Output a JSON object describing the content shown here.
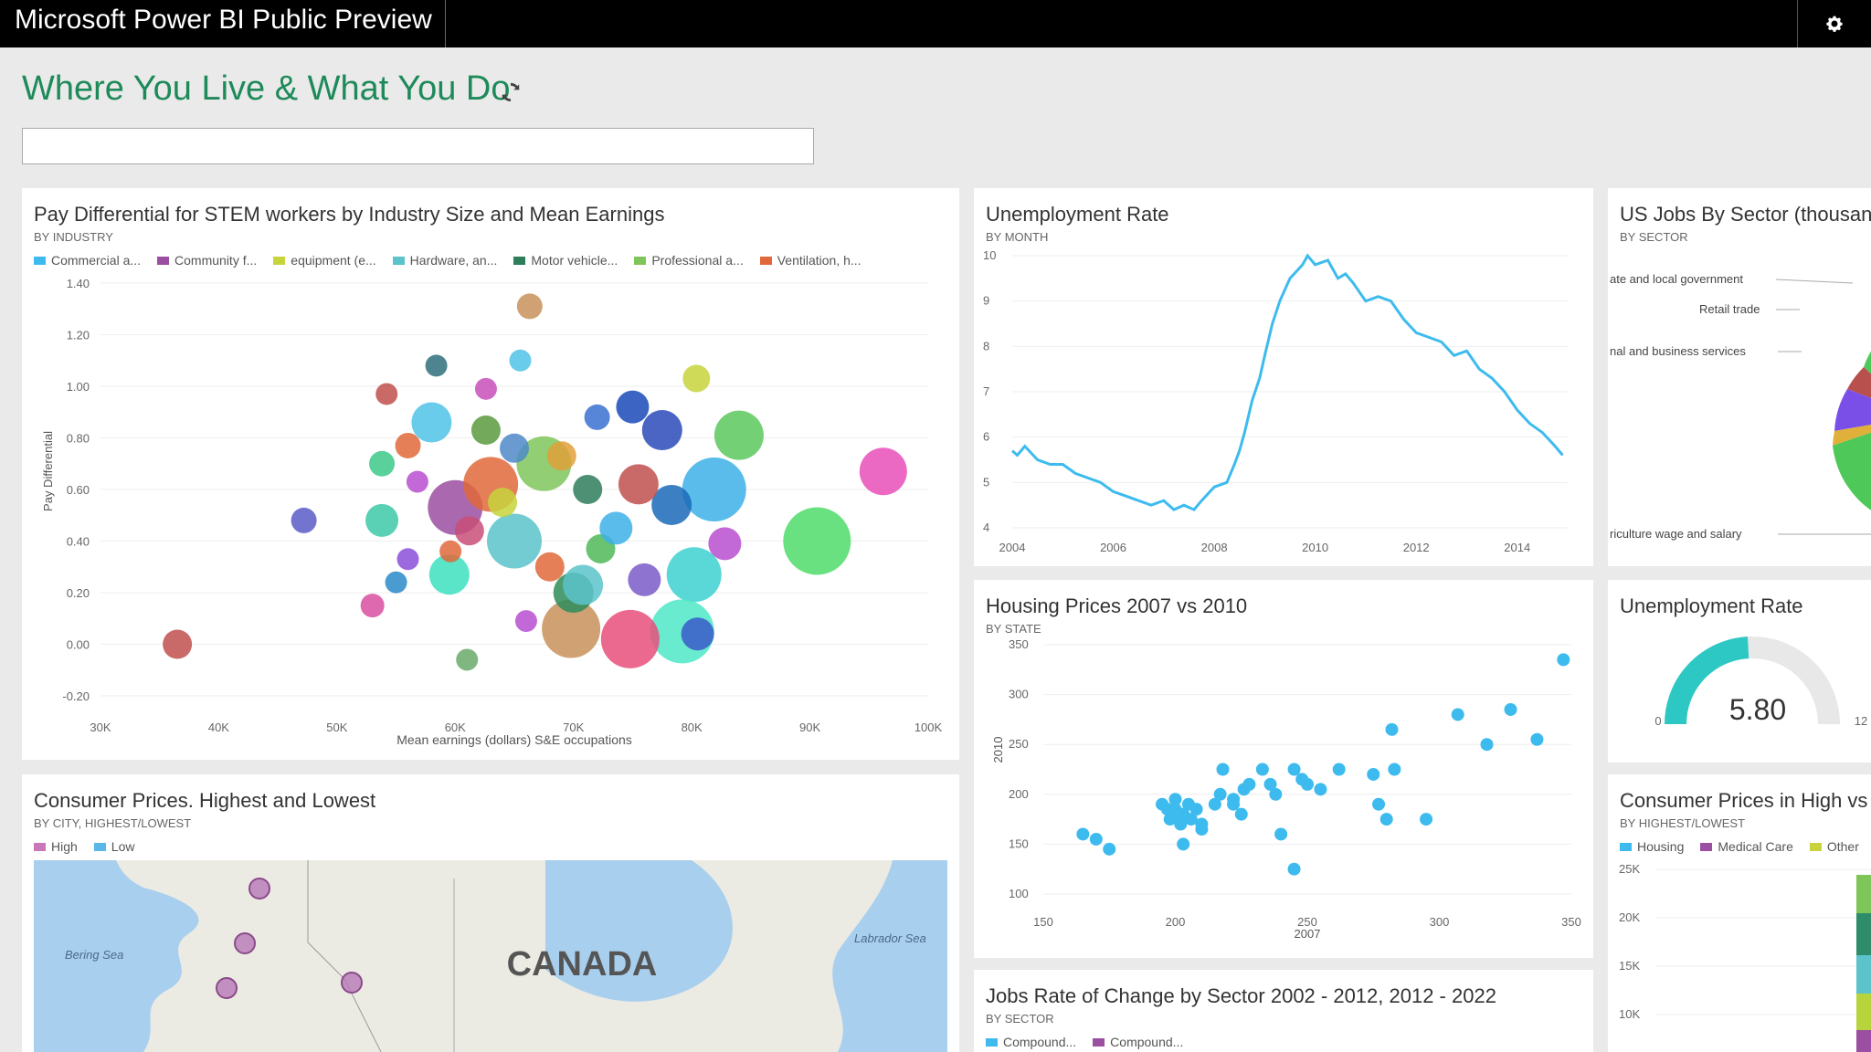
{
  "app": {
    "title": "Microsoft Power BI Public Preview"
  },
  "dashboard": {
    "title": "Where You Live & What You Do",
    "qa_placeholder": ""
  },
  "tiles": {
    "stem": {
      "title": "Pay Differential for STEM workers by Industry Size and Mean Earnings",
      "subtitle": "BY INDUSTRY",
      "legend": [
        {
          "label": "Commercial a...",
          "color": "#3dbbee"
        },
        {
          "label": "Community f...",
          "color": "#9b4fa0"
        },
        {
          "label": "equipment (e...",
          "color": "#c7d43c"
        },
        {
          "label": "Hardware, an...",
          "color": "#5bc3c9"
        },
        {
          "label": "Motor vehicle...",
          "color": "#2e7d5b"
        },
        {
          "label": "Professional a...",
          "color": "#7fc65a"
        },
        {
          "label": "Ventilation, h...",
          "color": "#e0683a"
        }
      ]
    },
    "unemp": {
      "title": "Unemployment Rate",
      "subtitle": "BY MONTH"
    },
    "jobs_sector": {
      "title": "US Jobs By Sector (thousands)",
      "subtitle": "BY SECTOR",
      "labels": [
        "ate and local government",
        "Retail trade",
        "nal and business services",
        "riculture wage and salary"
      ]
    },
    "housing": {
      "title": "Housing Prices 2007 vs 2010",
      "subtitle": "BY STATE"
    },
    "gauge": {
      "title": "Unemployment Rate",
      "value": "5.80",
      "min": "0",
      "max": "12"
    },
    "consumer_map": {
      "title": "Consumer Prices. Highest and Lowest",
      "subtitle": "BY CITY, HIGHEST/LOWEST",
      "legend": [
        {
          "label": "High",
          "color": "#c878b8"
        },
        {
          "label": "Low",
          "color": "#5ab8e8"
        }
      ],
      "map_labels": {
        "country": "CANADA",
        "sea1": "Bering Sea",
        "sea2": "Labrador Sea"
      }
    },
    "consumer_hl": {
      "title": "Consumer Prices in High vs Low",
      "subtitle": "BY HIGHEST/LOWEST",
      "legend": [
        {
          "label": "Housing",
          "color": "#3dbbee"
        },
        {
          "label": "Medical Care",
          "color": "#9b4fa0"
        },
        {
          "label": "Other",
          "color": "#c7d43c"
        }
      ],
      "ticks": [
        "25K",
        "20K",
        "15K",
        "10K"
      ]
    },
    "jobs_rate": {
      "title": "Jobs Rate of Change by Sector 2002 - 2012, 2012 - 2022",
      "subtitle": "BY SECTOR",
      "legend": [
        {
          "label": "Compound...",
          "color": "#3dbbee"
        },
        {
          "label": "Compound...",
          "color": "#9b4fa0"
        }
      ]
    }
  },
  "chart_data": [
    {
      "type": "scatter",
      "title": "Pay Differential for STEM workers by Industry Size and Mean Earnings",
      "xlabel": "Mean earnings (dollars) S&E occupations",
      "ylabel": "Pay Differential",
      "xlim": [
        30000,
        100000
      ],
      "ylim": [
        -0.2,
        1.4
      ],
      "xticks": [
        "30K",
        "40K",
        "50K",
        "60K",
        "70K",
        "80K",
        "90K",
        "100K"
      ],
      "yticks": [
        "1.40",
        "1.20",
        "1.00",
        "0.80",
        "0.60",
        "0.40",
        "0.20",
        "0.00",
        "-0.20"
      ],
      "points": [
        {
          "x": 36500,
          "y": 0.0,
          "size": 16,
          "color": "#c0504d"
        },
        {
          "x": 47200,
          "y": 0.48,
          "size": 14,
          "color": "#5a5ac8"
        },
        {
          "x": 66300,
          "y": 1.31,
          "size": 14,
          "color": "#c8925a"
        },
        {
          "x": 65500,
          "y": 1.1,
          "size": 12,
          "color": "#4fc3e8"
        },
        {
          "x": 80400,
          "y": 1.03,
          "size": 15,
          "color": "#c7d43c"
        },
        {
          "x": 84000,
          "y": 0.81,
          "size": 27,
          "color": "#5cc85c"
        },
        {
          "x": 96200,
          "y": 0.67,
          "size": 26,
          "color": "#e84fb8"
        },
        {
          "x": 90600,
          "y": 0.4,
          "size": 37,
          "color": "#4fdc6a"
        },
        {
          "x": 80200,
          "y": 0.27,
          "size": 30,
          "color": "#3dd0d0"
        },
        {
          "x": 79200,
          "y": 0.05,
          "size": 35,
          "color": "#4fe8c8"
        },
        {
          "x": 81900,
          "y": 0.6,
          "size": 35,
          "color": "#3db0e8"
        },
        {
          "x": 61000,
          "y": -0.06,
          "size": 12,
          "color": "#6aaa6a"
        },
        {
          "x": 74800,
          "y": 0.02,
          "size": 32,
          "color": "#e84f7a"
        },
        {
          "x": 69800,
          "y": 0.06,
          "size": 32,
          "color": "#c8925a"
        },
        {
          "x": 70000,
          "y": 0.2,
          "size": 22,
          "color": "#2e8c5b"
        },
        {
          "x": 70800,
          "y": 0.23,
          "size": 22,
          "color": "#5bc3c9"
        },
        {
          "x": 80500,
          "y": 0.04,
          "size": 18,
          "color": "#3a5ac8"
        },
        {
          "x": 82800,
          "y": 0.39,
          "size": 18,
          "color": "#b84fd0"
        },
        {
          "x": 78300,
          "y": 0.54,
          "size": 22,
          "color": "#1a6ab8"
        },
        {
          "x": 77500,
          "y": 0.83,
          "size": 22,
          "color": "#2a4ab8"
        },
        {
          "x": 72000,
          "y": 0.88,
          "size": 14,
          "color": "#3a70d0"
        },
        {
          "x": 56000,
          "y": 0.77,
          "size": 14,
          "color": "#e0683a"
        },
        {
          "x": 53800,
          "y": 0.7,
          "size": 14,
          "color": "#3dc88a"
        },
        {
          "x": 53800,
          "y": 0.48,
          "size": 18,
          "color": "#3dc8a8"
        },
        {
          "x": 59500,
          "y": 0.27,
          "size": 22,
          "color": "#3de0c0"
        },
        {
          "x": 60000,
          "y": 0.53,
          "size": 30,
          "color": "#9b4fa0"
        },
        {
          "x": 63000,
          "y": 0.62,
          "size": 30,
          "color": "#e0683a"
        },
        {
          "x": 65000,
          "y": 0.4,
          "size": 30,
          "color": "#5bc3c9"
        },
        {
          "x": 67500,
          "y": 0.7,
          "size": 30,
          "color": "#7fc65a"
        },
        {
          "x": 58000,
          "y": 0.86,
          "size": 22,
          "color": "#4fc3e8"
        },
        {
          "x": 54200,
          "y": 0.97,
          "size": 12,
          "color": "#c0504d"
        },
        {
          "x": 58400,
          "y": 1.08,
          "size": 12,
          "color": "#2e6e7d"
        },
        {
          "x": 62600,
          "y": 0.99,
          "size": 12,
          "color": "#c84fb8"
        },
        {
          "x": 75000,
          "y": 0.92,
          "size": 18,
          "color": "#1a4ab8"
        },
        {
          "x": 75500,
          "y": 0.62,
          "size": 22,
          "color": "#c0504d"
        },
        {
          "x": 56800,
          "y": 0.63,
          "size": 12,
          "color": "#b84fd0"
        },
        {
          "x": 56000,
          "y": 0.33,
          "size": 12,
          "color": "#8b4fd8"
        },
        {
          "x": 53000,
          "y": 0.15,
          "size": 13,
          "color": "#d84fa0"
        },
        {
          "x": 66000,
          "y": 0.09,
          "size": 12,
          "color": "#b84fd0"
        },
        {
          "x": 72300,
          "y": 0.37,
          "size": 16,
          "color": "#4fb858"
        },
        {
          "x": 61200,
          "y": 0.44,
          "size": 16,
          "color": "#c84f78"
        },
        {
          "x": 62600,
          "y": 0.83,
          "size": 16,
          "color": "#5a9a3d"
        },
        {
          "x": 65000,
          "y": 0.76,
          "size": 16,
          "color": "#4f8ac8"
        },
        {
          "x": 69000,
          "y": 0.73,
          "size": 16,
          "color": "#e0a03a"
        },
        {
          "x": 68000,
          "y": 0.3,
          "size": 16,
          "color": "#e0683a"
        },
        {
          "x": 73600,
          "y": 0.45,
          "size": 18,
          "color": "#3db0e8"
        },
        {
          "x": 76000,
          "y": 0.25,
          "size": 18,
          "color": "#7a5ac8"
        },
        {
          "x": 64000,
          "y": 0.55,
          "size": 16,
          "color": "#c7d43c"
        },
        {
          "x": 71200,
          "y": 0.6,
          "size": 16,
          "color": "#2e7d5b"
        },
        {
          "x": 59600,
          "y": 0.36,
          "size": 12,
          "color": "#e0683a"
        },
        {
          "x": 55000,
          "y": 0.24,
          "size": 12,
          "color": "#2a8ac8"
        }
      ]
    },
    {
      "type": "line",
      "title": "Unemployment Rate",
      "xlim": [
        2004,
        2015
      ],
      "ylim": [
        4,
        10
      ],
      "xticks": [
        "2004",
        "2006",
        "2008",
        "2010",
        "2012",
        "2014"
      ],
      "yticks": [
        "10",
        "9",
        "8",
        "7",
        "6",
        "5",
        "4"
      ],
      "series": [
        {
          "color": "#3dbbee",
          "points": [
            [
              2004.0,
              5.7
            ],
            [
              2004.1,
              5.6
            ],
            [
              2004.25,
              5.8
            ],
            [
              2004.5,
              5.5
            ],
            [
              2004.75,
              5.4
            ],
            [
              2005.0,
              5.4
            ],
            [
              2005.25,
              5.2
            ],
            [
              2005.5,
              5.1
            ],
            [
              2005.75,
              5.0
            ],
            [
              2006.0,
              4.8
            ],
            [
              2006.25,
              4.7
            ],
            [
              2006.5,
              4.6
            ],
            [
              2006.75,
              4.5
            ],
            [
              2007.0,
              4.6
            ],
            [
              2007.2,
              4.4
            ],
            [
              2007.4,
              4.5
            ],
            [
              2007.6,
              4.4
            ],
            [
              2007.75,
              4.6
            ],
            [
              2008.0,
              4.9
            ],
            [
              2008.25,
              5.0
            ],
            [
              2008.4,
              5.4
            ],
            [
              2008.5,
              5.7
            ],
            [
              2008.6,
              6.1
            ],
            [
              2008.75,
              6.8
            ],
            [
              2008.9,
              7.3
            ],
            [
              2009.0,
              7.8
            ],
            [
              2009.15,
              8.5
            ],
            [
              2009.3,
              9.0
            ],
            [
              2009.5,
              9.5
            ],
            [
              2009.75,
              9.8
            ],
            [
              2009.85,
              10.0
            ],
            [
              2010.0,
              9.8
            ],
            [
              2010.25,
              9.9
            ],
            [
              2010.45,
              9.5
            ],
            [
              2010.6,
              9.6
            ],
            [
              2010.75,
              9.4
            ],
            [
              2011.0,
              9.0
            ],
            [
              2011.25,
              9.1
            ],
            [
              2011.5,
              9.0
            ],
            [
              2011.75,
              8.6
            ],
            [
              2012.0,
              8.3
            ],
            [
              2012.25,
              8.2
            ],
            [
              2012.5,
              8.1
            ],
            [
              2012.75,
              7.8
            ],
            [
              2013.0,
              7.9
            ],
            [
              2013.25,
              7.5
            ],
            [
              2013.5,
              7.3
            ],
            [
              2013.75,
              7.0
            ],
            [
              2014.0,
              6.6
            ],
            [
              2014.25,
              6.3
            ],
            [
              2014.5,
              6.1
            ],
            [
              2014.75,
              5.8
            ],
            [
              2014.9,
              5.6
            ]
          ]
        }
      ]
    },
    {
      "type": "pie",
      "title": "US Jobs By Sector (thousands)",
      "slices": [
        {
          "label": "ate and local government",
          "color": "#4fc85a"
        },
        {
          "label": "Retail trade",
          "color": "#b8504d"
        },
        {
          "label": "nal and business services",
          "color": "#7a4fe8"
        },
        {
          "label": "",
          "color": "#e0b03a"
        },
        {
          "label": "riculture wage and salary",
          "color": "#4fc85a"
        }
      ]
    },
    {
      "type": "scatter",
      "title": "Housing Prices 2007 vs 2010",
      "xlabel": "2007",
      "ylabel": "2010",
      "xlim": [
        150,
        350
      ],
      "ylim": [
        100,
        350
      ],
      "xticks": [
        "150",
        "200",
        "250",
        "300",
        "350"
      ],
      "yticks": [
        "350",
        "300",
        "250",
        "200",
        "150",
        "100"
      ],
      "points": [
        [
          165,
          160
        ],
        [
          170,
          155
        ],
        [
          175,
          145
        ],
        [
          195,
          190
        ],
        [
          197,
          185
        ],
        [
          198,
          175
        ],
        [
          200,
          195
        ],
        [
          200,
          185
        ],
        [
          203,
          180
        ],
        [
          205,
          190
        ],
        [
          202,
          170
        ],
        [
          200,
          180
        ],
        [
          203,
          150
        ],
        [
          206,
          175
        ],
        [
          208,
          185
        ],
        [
          210,
          165
        ],
        [
          210,
          170
        ],
        [
          218,
          225
        ],
        [
          215,
          190
        ],
        [
          217,
          200
        ],
        [
          222,
          195
        ],
        [
          222,
          190
        ],
        [
          226,
          205
        ],
        [
          228,
          210
        ],
        [
          233,
          225
        ],
        [
          236,
          210
        ],
        [
          238,
          200
        ],
        [
          225,
          180
        ],
        [
          240,
          160
        ],
        [
          245,
          125
        ],
        [
          245,
          225
        ],
        [
          248,
          215
        ],
        [
          250,
          210
        ],
        [
          255,
          205
        ],
        [
          262,
          225
        ],
        [
          275,
          220
        ],
        [
          277,
          190
        ],
        [
          282,
          265
        ],
        [
          280,
          175
        ],
        [
          283,
          225
        ],
        [
          295,
          175
        ],
        [
          307,
          280
        ],
        [
          318,
          250
        ],
        [
          327,
          285
        ],
        [
          337,
          255
        ],
        [
          347,
          335
        ]
      ]
    },
    {
      "type": "gauge",
      "title": "Unemployment Rate",
      "value": 5.8,
      "min": 0,
      "max": 12
    }
  ]
}
